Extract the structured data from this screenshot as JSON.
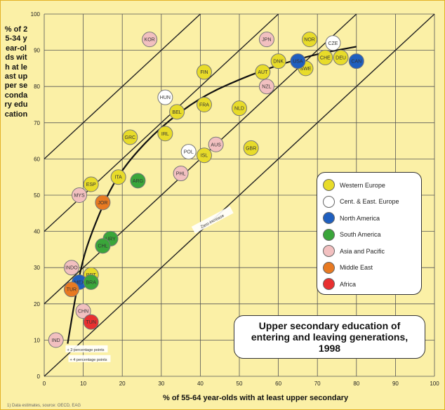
{
  "chart_data": {
    "type": "scatter",
    "title": "Upper secondary education of entering and leaving generations, 1998",
    "xlabel": "% of 55-64 year-olds with at least upper secondary",
    "ylabel": "% of 25-34 year-olds with at least upper secondary education",
    "xlim": [
      0,
      100
    ],
    "ylim": [
      0,
      100
    ],
    "x_ticks": [
      "0",
      "10",
      "20",
      "30",
      "40",
      "50",
      "60",
      "70",
      "80",
      "90",
      "100"
    ],
    "y_ticks": [
      "0",
      "10",
      "20",
      "30",
      "40",
      "50",
      "60",
      "70",
      "80",
      "90",
      "100"
    ],
    "grid": true,
    "legend_position": "right",
    "categories": [
      {
        "key": "we",
        "name": "Western Europe",
        "color": "#e8dc2a"
      },
      {
        "key": "ce",
        "name": "Cent. & East. Europe",
        "color": "#ffffff"
      },
      {
        "key": "na",
        "name": "North America",
        "color": "#1f5fbf"
      },
      {
        "key": "sa",
        "name": "South America",
        "color": "#3aa63a"
      },
      {
        "key": "ap",
        "name": "Asia and Pacific",
        "color": "#f2c0c0"
      },
      {
        "key": "me",
        "name": "Middle East",
        "color": "#e87a22"
      },
      {
        "key": "af",
        "name": "Africa",
        "color": "#e83030"
      }
    ],
    "points": [
      {
        "label": "NOR",
        "x": 68,
        "y": 93,
        "cat": "we"
      },
      {
        "label": "DEU",
        "x": 76,
        "y": 88,
        "cat": "we"
      },
      {
        "label": "CHE",
        "x": 72,
        "y": 88,
        "cat": "we"
      },
      {
        "label": "DNK",
        "x": 60,
        "y": 87,
        "cat": "we"
      },
      {
        "label": "AUT",
        "x": 56,
        "y": 84,
        "cat": "we"
      },
      {
        "label": "SWE",
        "x": 67,
        "y": 85,
        "cat": "we"
      },
      {
        "label": "FIN",
        "x": 41,
        "y": 84,
        "cat": "we"
      },
      {
        "label": "FRA",
        "x": 41,
        "y": 75,
        "cat": "we"
      },
      {
        "label": "BEL",
        "x": 34,
        "y": 73,
        "cat": "we"
      },
      {
        "label": "NLD",
        "x": 50,
        "y": 74,
        "cat": "we"
      },
      {
        "label": "IRL",
        "x": 31,
        "y": 67,
        "cat": "we"
      },
      {
        "label": "GRC",
        "x": 22,
        "y": 66,
        "cat": "we"
      },
      {
        "label": "GBR",
        "x": 53,
        "y": 63,
        "cat": "we"
      },
      {
        "label": "ISL",
        "x": 41,
        "y": 61,
        "cat": "we"
      },
      {
        "label": "ITA",
        "x": 19,
        "y": 55,
        "cat": "we"
      },
      {
        "label": "ESP",
        "x": 12,
        "y": 53,
        "cat": "we"
      },
      {
        "label": "PRT",
        "x": 12,
        "y": 28,
        "cat": "we"
      },
      {
        "label": "CZE",
        "x": 74,
        "y": 92,
        "cat": "ce"
      },
      {
        "label": "HUN",
        "x": 31,
        "y": 77,
        "cat": "ce"
      },
      {
        "label": "POL",
        "x": 37,
        "y": 62,
        "cat": "ce"
      },
      {
        "label": "USA",
        "x": 65,
        "y": 87,
        "cat": "na"
      },
      {
        "label": "CAN",
        "x": 80,
        "y": 87,
        "cat": "na"
      },
      {
        "label": "MEX",
        "x": 9,
        "y": 26,
        "cat": "na"
      },
      {
        "label": "ARG",
        "x": 24,
        "y": 54,
        "cat": "sa"
      },
      {
        "label": "URY",
        "x": 17,
        "y": 38,
        "cat": "sa"
      },
      {
        "label": "CHL",
        "x": 15,
        "y": 36,
        "cat": "sa"
      },
      {
        "label": "BRA",
        "x": 12,
        "y": 26,
        "cat": "sa"
      },
      {
        "label": "JPN",
        "x": 57,
        "y": 93,
        "cat": "ap"
      },
      {
        "label": "KOR",
        "x": 27,
        "y": 93,
        "cat": "ap"
      },
      {
        "label": "NZL",
        "x": 57,
        "y": 80,
        "cat": "ap"
      },
      {
        "label": "AUS",
        "x": 44,
        "y": 64,
        "cat": "ap"
      },
      {
        "label": "PHL",
        "x": 35,
        "y": 56,
        "cat": "ap"
      },
      {
        "label": "MYS",
        "x": 9,
        "y": 50,
        "cat": "ap"
      },
      {
        "label": "INDO",
        "x": 7,
        "y": 30,
        "cat": "ap"
      },
      {
        "label": "CHN",
        "x": 10,
        "y": 18,
        "cat": "ap"
      },
      {
        "label": "IND",
        "x": 3,
        "y": 10,
        "cat": "ap"
      },
      {
        "label": "JOR",
        "x": 15,
        "y": 48,
        "cat": "me"
      },
      {
        "label": "TUR",
        "x": 7,
        "y": 24,
        "cat": "me"
      },
      {
        "label": "TUN",
        "x": 12,
        "y": 15,
        "cat": "af"
      }
    ],
    "annotations": [
      {
        "text": "Zero increase"
      },
      {
        "text": "+ 2 percentage points"
      },
      {
        "text": "+ 4 percentage points"
      }
    ]
  },
  "source_note": "1) Data estimates, source: OECD, EAG"
}
